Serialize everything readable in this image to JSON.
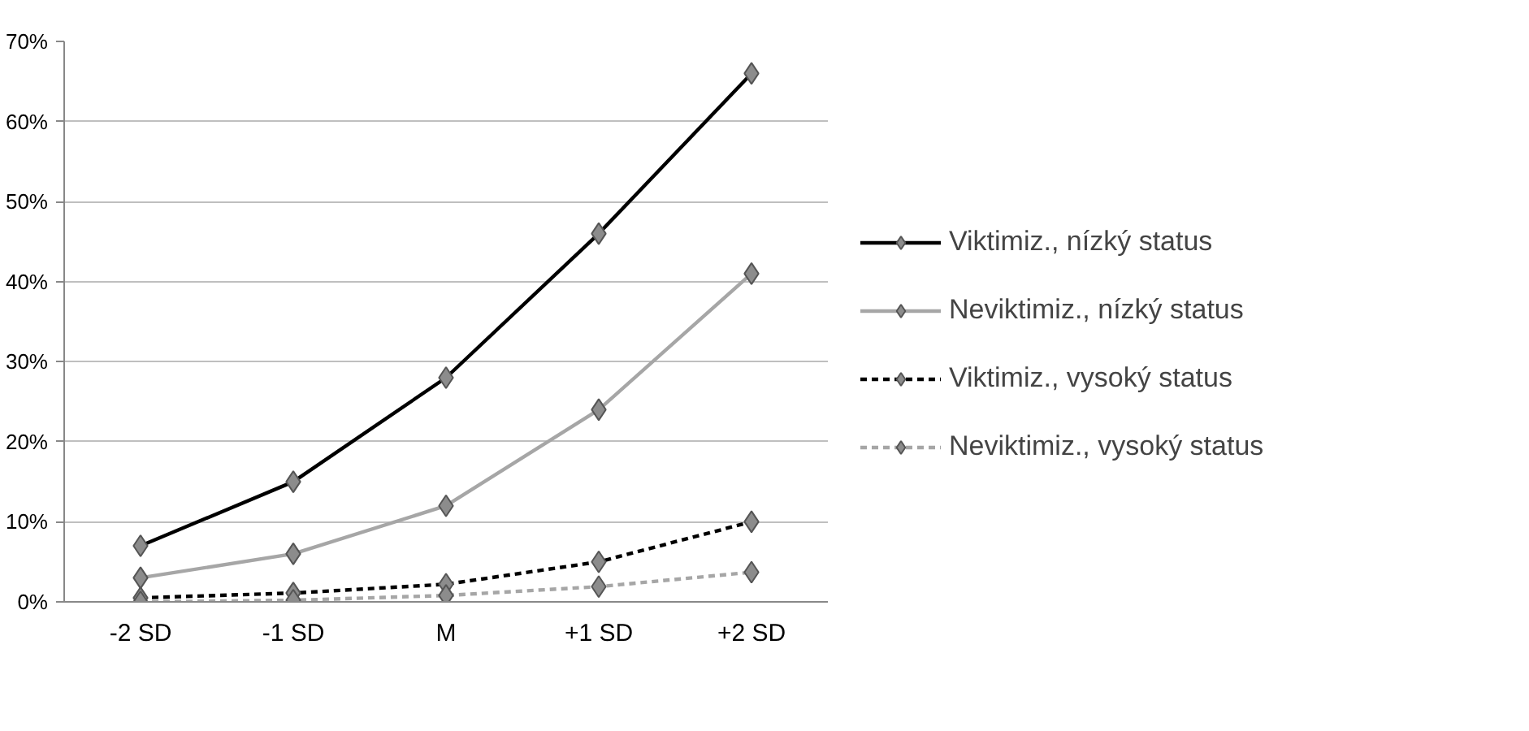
{
  "chart_data": {
    "type": "line",
    "categories": [
      "-2 SD",
      "-1 SD",
      "M",
      "+1 SD",
      "+2 SD"
    ],
    "ylim": [
      0,
      70
    ],
    "yticks": [
      {
        "value": 0,
        "label": "0%"
      },
      {
        "value": 10,
        "label": "10%"
      },
      {
        "value": 20,
        "label": "20%"
      },
      {
        "value": 30,
        "label": "30%"
      },
      {
        "value": 40,
        "label": "40%"
      },
      {
        "value": 50,
        "label": "50%"
      },
      {
        "value": 60,
        "label": "60%"
      },
      {
        "value": 70,
        "label": "70%"
      }
    ],
    "grid": "y",
    "legend": "right",
    "marker": "diamond",
    "series": [
      {
        "name": "Viktimiz., nízký status",
        "color": "#000000",
        "line_style": "solid",
        "values": [
          7,
          15,
          28,
          46,
          66
        ]
      },
      {
        "name": "Neviktimiz., nízký status",
        "color": "#a6a6a6",
        "line_style": "solid",
        "values": [
          3,
          6,
          12,
          24,
          41
        ]
      },
      {
        "name": "Viktimiz., vysoký status",
        "color": "#000000",
        "line_style": "dashed",
        "values": [
          0.5,
          1.1,
          2.2,
          5,
          10
        ]
      },
      {
        "name": "Neviktimiz., vysoký status",
        "color": "#a6a6a6",
        "line_style": "dashed",
        "values": [
          0,
          0.2,
          0.8,
          1.9,
          3.7
        ]
      }
    ]
  }
}
